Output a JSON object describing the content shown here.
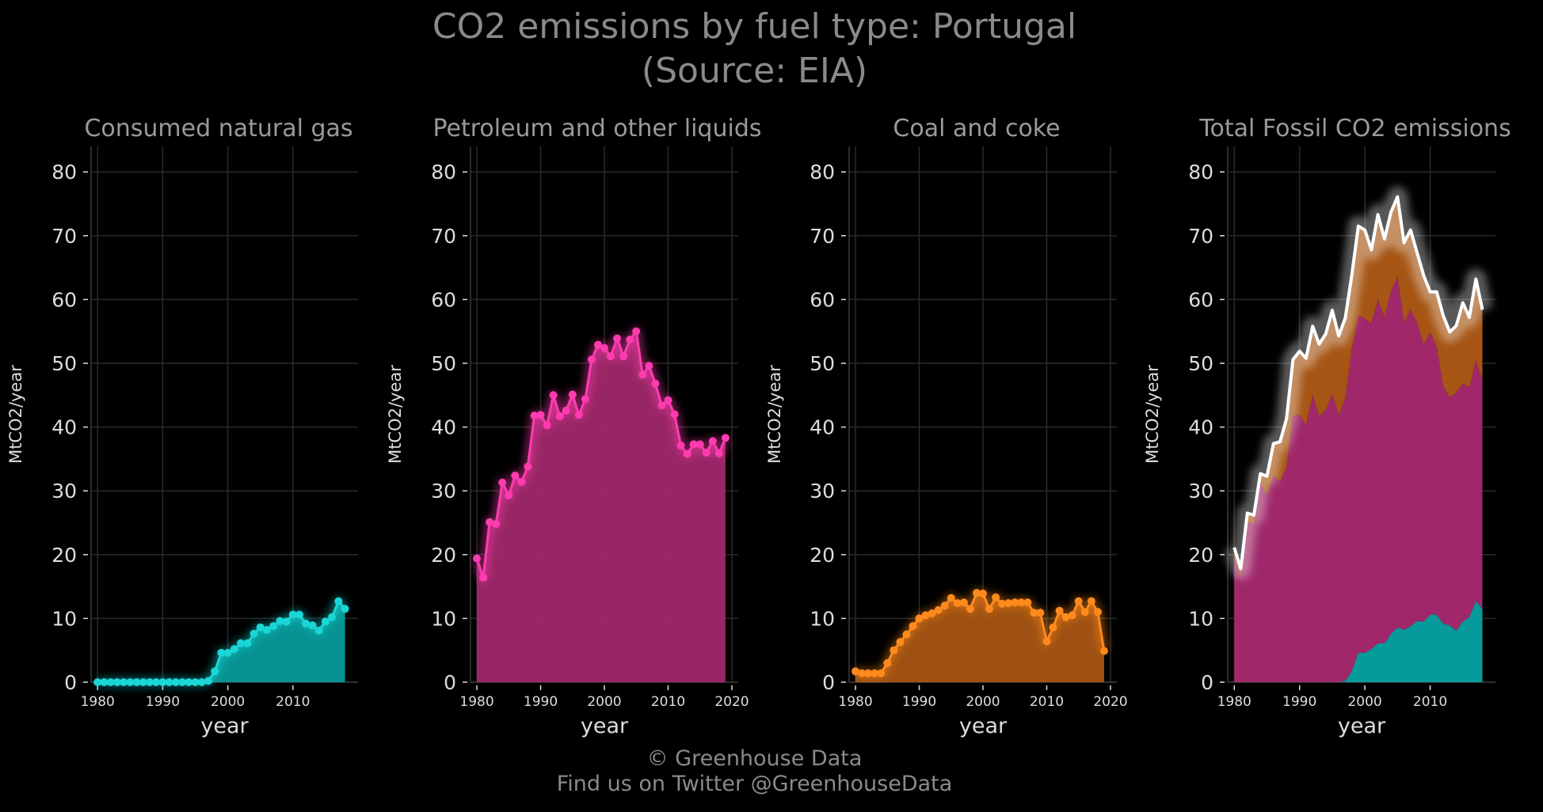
{
  "figure": {
    "title_line1": "CO2 emissions by fuel type: Portugal",
    "title_line2": "(Source: EIA)",
    "footer_line1": "© Greenhouse Data",
    "footer_line2": "Find us on Twitter @GreenhouseData"
  },
  "colors": {
    "background": "#000000",
    "gas": "#1ad6d6",
    "gas_fill": "#079a9a",
    "petroleum": "#ff3bb0",
    "petroleum_fill": "#a0286a",
    "coal": "#ff8a1c",
    "coal_fill": "#a65514",
    "total_line": "#ffffff",
    "text": "#dddddd",
    "title": "#8a8a8a"
  },
  "chart_data": [
    {
      "type": "area",
      "title": "Consumed natural gas",
      "xlabel": "year",
      "ylabel": "MtCO2/year",
      "ylim": [
        0,
        84
      ],
      "xlim": [
        1979,
        2020
      ],
      "xticks": [
        1980,
        1990,
        2000,
        2010
      ],
      "yticks": [
        0,
        10,
        20,
        30,
        40,
        50,
        60,
        70,
        80
      ],
      "grid": true,
      "x": [
        1980,
        1981,
        1982,
        1983,
        1984,
        1985,
        1986,
        1987,
        1988,
        1989,
        1990,
        1991,
        1992,
        1993,
        1994,
        1995,
        1996,
        1997,
        1998,
        1999,
        2000,
        2001,
        2002,
        2003,
        2004,
        2005,
        2006,
        2007,
        2008,
        2009,
        2010,
        2011,
        2012,
        2013,
        2014,
        2015,
        2016,
        2017,
        2018
      ],
      "series": [
        {
          "values": [
            0,
            0,
            0,
            0,
            0,
            0,
            0,
            0,
            0,
            0,
            0,
            0,
            0,
            0,
            0,
            0,
            0,
            0.2,
            1.7,
            4.6,
            4.6,
            5.2,
            6.1,
            6.1,
            7.6,
            8.6,
            8.2,
            8.8,
            9.6,
            9.5,
            10.6,
            10.6,
            9.2,
            8.9,
            8.1,
            9.5,
            10.2,
            12.7,
            11.5
          ]
        }
      ]
    },
    {
      "type": "area",
      "title": "Petroleum and other liquids",
      "xlabel": "year",
      "ylabel": "MtCO2/year",
      "ylim": [
        0,
        84
      ],
      "xlim": [
        1979,
        2021
      ],
      "xticks": [
        1980,
        1990,
        2000,
        2010,
        2020
      ],
      "yticks": [
        0,
        10,
        20,
        30,
        40,
        50,
        60,
        70,
        80
      ],
      "grid": true,
      "x": [
        1980,
        1981,
        1982,
        1983,
        1984,
        1985,
        1986,
        1987,
        1988,
        1989,
        1990,
        1991,
        1992,
        1993,
        1994,
        1995,
        1996,
        1997,
        1998,
        1999,
        2000,
        2001,
        2002,
        2003,
        2004,
        2005,
        2006,
        2007,
        2008,
        2009,
        2010,
        2011,
        2012,
        2013,
        2014,
        2015,
        2016,
        2017,
        2018,
        2019
      ],
      "series": [
        {
          "values": [
            19.4,
            16.4,
            25.1,
            24.8,
            31.3,
            29.3,
            32.4,
            31.4,
            33.8,
            41.8,
            41.9,
            40.3,
            45.0,
            41.7,
            42.6,
            45.1,
            41.9,
            44.4,
            50.6,
            52.9,
            52.4,
            51.1,
            53.9,
            51.1,
            53.7,
            55.0,
            48.2,
            49.6,
            46.8,
            43.4,
            44.2,
            42.0,
            37.1,
            35.8,
            37.3,
            37.3,
            36.0,
            37.8,
            35.9,
            38.3
          ]
        }
      ]
    },
    {
      "type": "area",
      "title": "Coal and coke",
      "xlabel": "year",
      "ylabel": "MtCO2/year",
      "ylim": [
        0,
        84
      ],
      "xlim": [
        1979,
        2021
      ],
      "xticks": [
        1980,
        1990,
        2000,
        2010,
        2020
      ],
      "yticks": [
        0,
        10,
        20,
        30,
        40,
        50,
        60,
        70,
        80
      ],
      "grid": true,
      "x": [
        1980,
        1981,
        1982,
        1983,
        1984,
        1985,
        1986,
        1987,
        1988,
        1989,
        1990,
        1991,
        1992,
        1993,
        1994,
        1995,
        1996,
        1997,
        1998,
        1999,
        2000,
        2001,
        2002,
        2003,
        2004,
        2005,
        2006,
        2007,
        2008,
        2009,
        2010,
        2011,
        2012,
        2013,
        2014,
        2015,
        2016,
        2017,
        2018,
        2019
      ],
      "series": [
        {
          "values": [
            1.7,
            1.4,
            1.4,
            1.4,
            1.4,
            3.0,
            5.0,
            6.3,
            7.5,
            8.8,
            10.0,
            10.5,
            10.8,
            11.3,
            12.0,
            13.2,
            12.4,
            12.5,
            11.5,
            14.0,
            13.9,
            11.5,
            13.3,
            12.3,
            12.4,
            12.5,
            12.5,
            12.5,
            10.9,
            10.9,
            6.4,
            8.6,
            11.2,
            10.2,
            10.5,
            12.7,
            11.0,
            12.7,
            11.0,
            4.9
          ]
        }
      ]
    },
    {
      "type": "area",
      "title": "Total Fossil CO2 emissions",
      "xlabel": "year",
      "ylabel": "MtCO2/year",
      "ylim": [
        0,
        84
      ],
      "xlim": [
        1979,
        2020
      ],
      "xticks": [
        1980,
        1990,
        2000,
        2010
      ],
      "yticks": [
        0,
        10,
        20,
        30,
        40,
        50,
        60,
        70,
        80
      ],
      "grid": true,
      "stacked": true,
      "x": [
        1980,
        1981,
        1982,
        1983,
        1984,
        1985,
        1986,
        1987,
        1988,
        1989,
        1990,
        1991,
        1992,
        1993,
        1994,
        1995,
        1996,
        1997,
        1998,
        1999,
        2000,
        2001,
        2002,
        2003,
        2004,
        2005,
        2006,
        2007,
        2008,
        2009,
        2010,
        2011,
        2012,
        2013,
        2014,
        2015,
        2016,
        2017,
        2018
      ],
      "series": [
        {
          "values": [
            0,
            0,
            0,
            0,
            0,
            0,
            0,
            0,
            0,
            0,
            0,
            0,
            0,
            0,
            0,
            0,
            0,
            0.2,
            1.7,
            4.6,
            4.6,
            5.2,
            6.1,
            6.1,
            7.6,
            8.6,
            8.2,
            8.8,
            9.6,
            9.5,
            10.6,
            10.6,
            9.2,
            8.9,
            8.1,
            9.5,
            10.2,
            12.7,
            11.5
          ]
        },
        {
          "values": [
            19.4,
            16.4,
            25.1,
            24.8,
            31.3,
            29.3,
            32.4,
            31.4,
            33.8,
            41.8,
            41.9,
            40.3,
            45.0,
            41.7,
            42.6,
            45.1,
            41.9,
            44.4,
            50.6,
            52.9,
            52.4,
            51.1,
            53.9,
            51.1,
            53.7,
            55.0,
            48.2,
            49.6,
            46.8,
            43.4,
            44.2,
            42.0,
            37.1,
            35.8,
            37.3,
            37.3,
            36.0,
            37.8,
            35.9
          ]
        },
        {
          "values": [
            1.7,
            1.4,
            1.4,
            1.4,
            1.4,
            3.0,
            5.0,
            6.3,
            7.5,
            8.8,
            10.0,
            10.5,
            10.8,
            11.3,
            12.0,
            13.2,
            12.4,
            12.5,
            11.5,
            14.0,
            13.9,
            11.5,
            13.3,
            12.3,
            12.4,
            12.5,
            12.5,
            12.5,
            10.9,
            10.9,
            6.4,
            8.6,
            11.2,
            10.2,
            10.5,
            12.7,
            11.0,
            12.7,
            11.0
          ]
        }
      ]
    }
  ]
}
